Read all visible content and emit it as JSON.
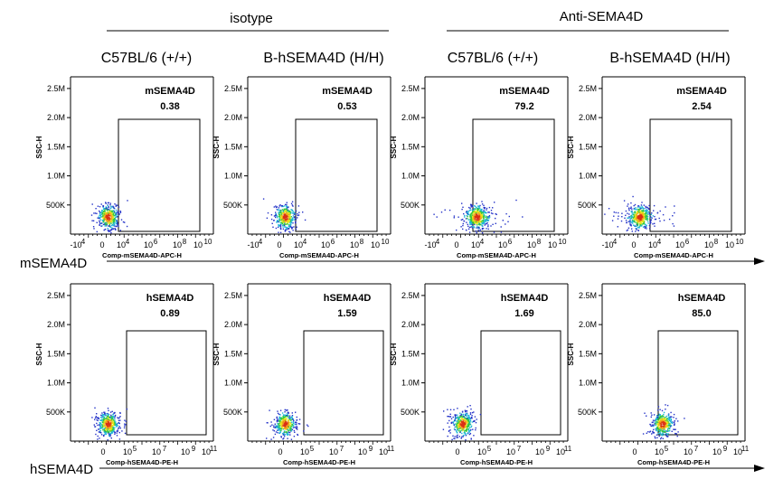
{
  "figure": {
    "groups": [
      {
        "label": "isotype"
      },
      {
        "label": "Anti-SEMA4D"
      }
    ],
    "columns": [
      {
        "label": "C57BL/6 (+/+)"
      },
      {
        "label": "B-hSEMA4D (H/H)"
      },
      {
        "label": "C57BL/6 (+/+)"
      },
      {
        "label": "B-hSEMA4D (H/H)"
      }
    ],
    "rows": [
      {
        "label": "mSEMA4D"
      },
      {
        "label": "hSEMA4D"
      }
    ]
  },
  "chart_data": [
    {
      "type": "scatter",
      "title": "mSEMA4D",
      "gate_value": "0.38",
      "xlabel": "Comp-mSEMA4D-APC-H",
      "ylabel": "SSC-H",
      "x_ticks": [
        "-10",
        "4",
        "0",
        "10",
        "4",
        "10",
        "6",
        "10",
        "8",
        "10",
        "10"
      ],
      "y_ticks": [
        "500K",
        "1.0M",
        "1.5M",
        "2.0M",
        "2.5M"
      ],
      "ylim": [
        0,
        2700000
      ],
      "population": {
        "x_center": "low",
        "y_center": 300000,
        "spread": "tight"
      }
    },
    {
      "type": "scatter",
      "title": "mSEMA4D",
      "gate_value": "0.53",
      "xlabel": "Comp-mSEMA4D-APC-H",
      "ylabel": "SSC-H",
      "x_ticks": [
        "-10",
        "4",
        "0",
        "10",
        "4",
        "10",
        "6",
        "10",
        "8",
        "10",
        "10"
      ],
      "y_ticks": [
        "500K",
        "1.0M",
        "1.5M",
        "2.0M",
        "2.5M"
      ],
      "ylim": [
        0,
        2700000
      ],
      "population": {
        "x_center": "low",
        "y_center": 300000,
        "spread": "tight"
      }
    },
    {
      "type": "scatter",
      "title": "mSEMA4D",
      "gate_value": "79.2",
      "xlabel": "Comp-mSEMA4D-APC-H",
      "ylabel": "SSC-H",
      "x_ticks": [
        "-10",
        "4",
        "0",
        "10",
        "4",
        "10",
        "6",
        "10",
        "8",
        "10",
        "10"
      ],
      "y_ticks": [
        "500K",
        "1.0M",
        "1.5M",
        "2.0M",
        "2.5M"
      ],
      "ylim": [
        0,
        2700000
      ],
      "population": {
        "x_center": "mid",
        "y_center": 300000,
        "spread": "wide"
      }
    },
    {
      "type": "scatter",
      "title": "mSEMA4D",
      "gate_value": "2.54",
      "xlabel": "Comp-mSEMA4D-APC-H",
      "ylabel": "SSC-H",
      "x_ticks": [
        "-10",
        "4",
        "0",
        "10",
        "4",
        "10",
        "6",
        "10",
        "8",
        "10",
        "10"
      ],
      "y_ticks": [
        "500K",
        "1.0M",
        "1.5M",
        "2.0M",
        "2.5M"
      ],
      "ylim": [
        0,
        2700000
      ],
      "population": {
        "x_center": "low",
        "y_center": 300000,
        "spread": "wide"
      }
    },
    {
      "type": "scatter",
      "title": "hSEMA4D",
      "gate_value": "0.89",
      "xlabel": "Comp-hSEMA4D-PE-H",
      "ylabel": "SSC-H",
      "x_ticks": [
        "0",
        "10",
        "5",
        "10",
        "7",
        "10",
        "9",
        "10",
        "11"
      ],
      "y_ticks": [
        "500K",
        "1.0M",
        "1.5M",
        "2.0M",
        "2.5M"
      ],
      "ylim": [
        0,
        2700000
      ],
      "population": {
        "x_center": "low",
        "y_center": 300000,
        "spread": "tight"
      }
    },
    {
      "type": "scatter",
      "title": "hSEMA4D",
      "gate_value": "1.59",
      "xlabel": "Comp-hSEMA4D-PE-H",
      "ylabel": "SSC-H",
      "x_ticks": [
        "0",
        "10",
        "5",
        "10",
        "7",
        "10",
        "9",
        "10",
        "11"
      ],
      "y_ticks": [
        "500K",
        "1.0M",
        "1.5M",
        "2.0M",
        "2.5M"
      ],
      "ylim": [
        0,
        2700000
      ],
      "population": {
        "x_center": "low",
        "y_center": 300000,
        "spread": "tight"
      }
    },
    {
      "type": "scatter",
      "title": "hSEMA4D",
      "gate_value": "1.69",
      "xlabel": "Comp-hSEMA4D-PE-H",
      "ylabel": "SSC-H",
      "x_ticks": [
        "0",
        "10",
        "5",
        "10",
        "7",
        "10",
        "9",
        "10",
        "11"
      ],
      "y_ticks": [
        "500K",
        "1.0M",
        "1.5M",
        "2.0M",
        "2.5M"
      ],
      "ylim": [
        0,
        2700000
      ],
      "population": {
        "x_center": "low",
        "y_center": 300000,
        "spread": "tight"
      }
    },
    {
      "type": "scatter",
      "title": "hSEMA4D",
      "gate_value": "85.0",
      "xlabel": "Comp-hSEMA4D-PE-H",
      "ylabel": "SSC-H",
      "x_ticks": [
        "0",
        "10",
        "5",
        "10",
        "7",
        "10",
        "9",
        "10",
        "11"
      ],
      "y_ticks": [
        "500K",
        "1.0M",
        "1.5M",
        "2.0M",
        "2.5M"
      ],
      "ylim": [
        0,
        2700000
      ],
      "population": {
        "x_center": "gated",
        "y_center": 300000,
        "spread": "tight"
      }
    }
  ]
}
